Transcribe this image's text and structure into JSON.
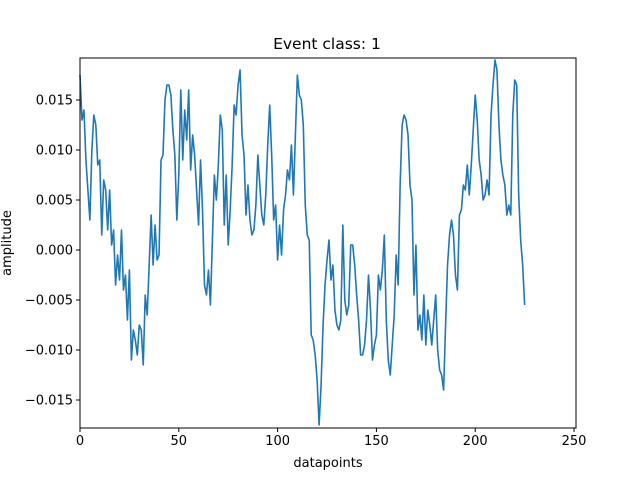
{
  "chart_data": {
    "type": "line",
    "title": "Event class: 1",
    "xlabel": "datapoints",
    "ylabel": "amplitude",
    "xlim": [
      0,
      251
    ],
    "ylim": [
      -0.0178,
      0.0192
    ],
    "grid": false,
    "xticks": [
      0,
      50,
      100,
      150,
      200,
      250
    ],
    "xtick_labels": [
      "0",
      "50",
      "100",
      "150",
      "200",
      "250"
    ],
    "yticks": [
      -0.015,
      -0.01,
      -0.005,
      0.0,
      0.005,
      0.01,
      0.015
    ],
    "ytick_labels": [
      "−0.015",
      "−0.010",
      "−0.005",
      "0.000",
      "0.005",
      "0.010",
      "0.015"
    ],
    "series": [
      {
        "color": "#1f77b4",
        "points": [
          [
            0,
            0.0175
          ],
          [
            1,
            0.013
          ],
          [
            2,
            0.014
          ],
          [
            3,
            0.009
          ],
          [
            4,
            0.006
          ],
          [
            5,
            0.003
          ],
          [
            6,
            0.01
          ],
          [
            7,
            0.0135
          ],
          [
            8,
            0.0125
          ],
          [
            9,
            0.0085
          ],
          [
            10,
            0.009
          ],
          [
            11,
            0.0015
          ],
          [
            12,
            0.007
          ],
          [
            13,
            0.006
          ],
          [
            14,
            0.002
          ],
          [
            15,
            0.006
          ],
          [
            16,
            0.0005
          ],
          [
            17,
            0.002
          ],
          [
            18,
            -0.0035
          ],
          [
            19,
            -0.0005
          ],
          [
            20,
            -0.003
          ],
          [
            21,
            0.002
          ],
          [
            22,
            -0.004
          ],
          [
            23,
            -0.0025
          ],
          [
            24,
            -0.007
          ],
          [
            25,
            -0.002
          ],
          [
            26,
            -0.011
          ],
          [
            27,
            -0.008
          ],
          [
            28,
            -0.009
          ],
          [
            29,
            -0.0105
          ],
          [
            30,
            -0.0075
          ],
          [
            31,
            -0.008
          ],
          [
            32,
            -0.0115
          ],
          [
            33,
            -0.0045
          ],
          [
            34,
            -0.0065
          ],
          [
            35,
            -0.0015
          ],
          [
            36,
            0.0035
          ],
          [
            37,
            -0.0015
          ],
          [
            38,
            0.0025
          ],
          [
            39,
            -0.001
          ],
          [
            40,
            -0.0005
          ],
          [
            41,
            0.009
          ],
          [
            42,
            0.0095
          ],
          [
            43,
            0.015
          ],
          [
            44,
            0.0165
          ],
          [
            45,
            0.0165
          ],
          [
            46,
            0.0155
          ],
          [
            47,
            0.012
          ],
          [
            48,
            0.0095
          ],
          [
            49,
            0.003
          ],
          [
            50,
            0.0075
          ],
          [
            51,
            0.016
          ],
          [
            52,
            0.009
          ],
          [
            53,
            0.014
          ],
          [
            54,
            0.011
          ],
          [
            55,
            0.016
          ],
          [
            56,
            0.008
          ],
          [
            57,
            0.0115
          ],
          [
            58,
            0.0095
          ],
          [
            59,
            0.006
          ],
          [
            60,
            0.0025
          ],
          [
            61,
            0.009
          ],
          [
            62,
            0.004
          ],
          [
            63,
            -0.0035
          ],
          [
            64,
            -0.0045
          ],
          [
            65,
            -0.002
          ],
          [
            66,
            -0.0055
          ],
          [
            67,
            0.001
          ],
          [
            68,
            0.0075
          ],
          [
            69,
            0.005
          ],
          [
            70,
            0.0085
          ],
          [
            71,
            0.0135
          ],
          [
            72,
            0.012
          ],
          [
            73,
            0.0025
          ],
          [
            74,
            0.0075
          ],
          [
            75,
            0.0005
          ],
          [
            76,
            0.004
          ],
          [
            77,
            0.0085
          ],
          [
            78,
            0.0145
          ],
          [
            79,
            0.0135
          ],
          [
            80,
            0.0165
          ],
          [
            81,
            0.018
          ],
          [
            82,
            0.0115
          ],
          [
            83,
            0.0095
          ],
          [
            84,
            0.0035
          ],
          [
            85,
            0.0065
          ],
          [
            86,
            0.003
          ],
          [
            87,
            0.0015
          ],
          [
            88,
            0.002
          ],
          [
            89,
            0.0045
          ],
          [
            90,
            0.0095
          ],
          [
            91,
            0.0065
          ],
          [
            92,
            0.0035
          ],
          [
            93,
            0.0025
          ],
          [
            94,
            0.0055
          ],
          [
            95,
            0.0105
          ],
          [
            96,
            0.0145
          ],
          [
            97,
            0.0095
          ],
          [
            98,
            0.003
          ],
          [
            99,
            0.0045
          ],
          [
            100,
            -0.001
          ],
          [
            101,
            0.0025
          ],
          [
            102,
            -0.0005
          ],
          [
            103,
            0.004
          ],
          [
            104,
            0.0055
          ],
          [
            105,
            0.008
          ],
          [
            106,
            0.007
          ],
          [
            107,
            0.0105
          ],
          [
            108,
            0.0055
          ],
          [
            109,
            0.0115
          ],
          [
            110,
            0.0175
          ],
          [
            111,
            0.0155
          ],
          [
            112,
            0.015
          ],
          [
            113,
            0.0125
          ],
          [
            114,
            0.0045
          ],
          [
            115,
            0.0015
          ],
          [
            116,
            0.001
          ],
          [
            117,
            -0.0085
          ],
          [
            118,
            -0.009
          ],
          [
            119,
            -0.0105
          ],
          [
            120,
            -0.013
          ],
          [
            121,
            -0.0175
          ],
          [
            122,
            -0.0135
          ],
          [
            123,
            -0.0075
          ],
          [
            124,
            -0.0035
          ],
          [
            125,
            -0.001
          ],
          [
            126,
            0.001
          ],
          [
            127,
            -0.003
          ],
          [
            128,
            -0.0015
          ],
          [
            129,
            -0.006
          ],
          [
            130,
            -0.0075
          ],
          [
            131,
            -0.008
          ],
          [
            132,
            -0.007
          ],
          [
            133,
            0.0025
          ],
          [
            134,
            -0.005
          ],
          [
            135,
            -0.0065
          ],
          [
            136,
            -0.0055
          ],
          [
            137,
            0.0005
          ],
          [
            138,
            0.0005
          ],
          [
            139,
            -0.0015
          ],
          [
            140,
            -0.0045
          ],
          [
            141,
            -0.007
          ],
          [
            142,
            -0.0105
          ],
          [
            143,
            -0.0105
          ],
          [
            144,
            -0.0095
          ],
          [
            145,
            -0.007
          ],
          [
            146,
            -0.0025
          ],
          [
            147,
            -0.006
          ],
          [
            148,
            -0.011
          ],
          [
            149,
            -0.0095
          ],
          [
            150,
            -0.0085
          ],
          [
            151,
            -0.0025
          ],
          [
            152,
            -0.004
          ],
          [
            153,
            -0.002
          ],
          [
            154,
            0.0015
          ],
          [
            155,
            -0.007
          ],
          [
            156,
            -0.011
          ],
          [
            157,
            -0.0125
          ],
          [
            158,
            -0.0095
          ],
          [
            159,
            -0.0065
          ],
          [
            160,
            -0.0005
          ],
          [
            161,
            -0.0035
          ],
          [
            162,
            0.0065
          ],
          [
            163,
            0.0125
          ],
          [
            164,
            0.0135
          ],
          [
            165,
            0.013
          ],
          [
            166,
            0.0115
          ],
          [
            167,
            0.0065
          ],
          [
            168,
            0.005
          ],
          [
            169,
            -0.0045
          ],
          [
            170,
            0.0005
          ],
          [
            171,
            -0.008
          ],
          [
            172,
            -0.0065
          ],
          [
            173,
            -0.009
          ],
          [
            174,
            -0.0045
          ],
          [
            175,
            -0.0095
          ],
          [
            176,
            -0.006
          ],
          [
            177,
            -0.0075
          ],
          [
            178,
            -0.0095
          ],
          [
            179,
            -0.007
          ],
          [
            180,
            -0.0045
          ],
          [
            181,
            -0.01
          ],
          [
            182,
            -0.012
          ],
          [
            183,
            -0.0125
          ],
          [
            184,
            -0.014
          ],
          [
            185,
            -0.0075
          ],
          [
            186,
            -0.0015
          ],
          [
            187,
            0.0015
          ],
          [
            188,
            0.003
          ],
          [
            189,
            0.0015
          ],
          [
            190,
            -0.0025
          ],
          [
            191,
            -0.004
          ],
          [
            192,
            0.0035
          ],
          [
            193,
            0.004
          ],
          [
            194,
            0.0065
          ],
          [
            195,
            0.006
          ],
          [
            196,
            0.0085
          ],
          [
            197,
            0.0055
          ],
          [
            198,
            0.0085
          ],
          [
            199,
            0.012
          ],
          [
            200,
            0.0155
          ],
          [
            201,
            0.013
          ],
          [
            202,
            0.009
          ],
          [
            203,
            0.0075
          ],
          [
            204,
            0.005
          ],
          [
            205,
            0.0055
          ],
          [
            206,
            0.007
          ],
          [
            207,
            0.0055
          ],
          [
            208,
            0.0135
          ],
          [
            209,
            0.0165
          ],
          [
            210,
            0.019
          ],
          [
            211,
            0.018
          ],
          [
            212,
            0.0125
          ],
          [
            213,
            0.009
          ],
          [
            214,
            0.0075
          ],
          [
            215,
            0.0065
          ],
          [
            216,
            0.0035
          ],
          [
            217,
            0.0045
          ],
          [
            218,
            0.0035
          ],
          [
            219,
            0.0135
          ],
          [
            220,
            0.017
          ],
          [
            221,
            0.0165
          ],
          [
            222,
            0.0055
          ],
          [
            223,
            0.001
          ],
          [
            224,
            -0.0015
          ],
          [
            225,
            -0.0055
          ]
        ]
      }
    ]
  }
}
